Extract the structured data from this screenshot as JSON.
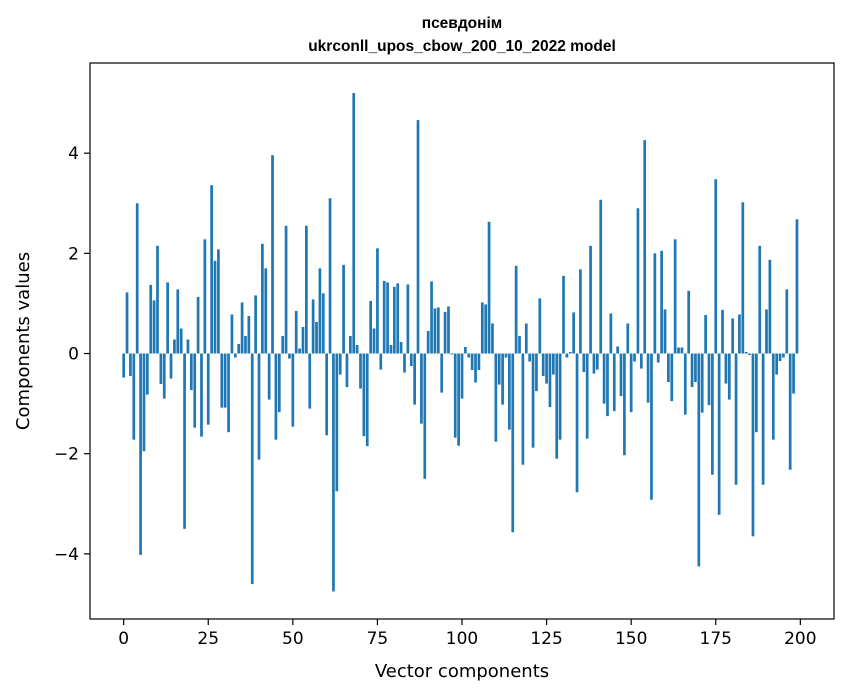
{
  "chart_data": {
    "type": "bar",
    "title": "псевдонім",
    "subtitle": "ukrconll_upos_cbow_200_10_2022 model",
    "xlabel": "Vector components",
    "ylabel": "Components values",
    "xlim": [
      -9.95,
      209.95
    ],
    "ylim": [
      -5.3,
      5.8
    ],
    "xticks": [
      0,
      25,
      50,
      75,
      100,
      125,
      150,
      175,
      200
    ],
    "yticks": [
      -4,
      -2,
      0,
      2,
      4
    ],
    "ytick_labels": [
      "−4",
      "−2",
      "0",
      "2",
      "4"
    ],
    "grid": false,
    "bar_color": "#1f77b4",
    "x": [
      0,
      1,
      2,
      3,
      4,
      5,
      6,
      7,
      8,
      9,
      10,
      11,
      12,
      13,
      14,
      15,
      16,
      17,
      18,
      19,
      20,
      21,
      22,
      23,
      24,
      25,
      26,
      27,
      28,
      29,
      30,
      31,
      32,
      33,
      34,
      35,
      36,
      37,
      38,
      39,
      40,
      41,
      42,
      43,
      44,
      45,
      46,
      47,
      48,
      49,
      50,
      51,
      52,
      53,
      54,
      55,
      56,
      57,
      58,
      59,
      60,
      61,
      62,
      63,
      64,
      65,
      66,
      67,
      68,
      69,
      70,
      71,
      72,
      73,
      74,
      75,
      76,
      77,
      78,
      79,
      80,
      81,
      82,
      83,
      84,
      85,
      86,
      87,
      88,
      89,
      90,
      91,
      92,
      93,
      94,
      95,
      96,
      97,
      98,
      99,
      100,
      101,
      102,
      103,
      104,
      105,
      106,
      107,
      108,
      109,
      110,
      111,
      112,
      113,
      114,
      115,
      116,
      117,
      118,
      119,
      120,
      121,
      122,
      123,
      124,
      125,
      126,
      127,
      128,
      129,
      130,
      131,
      132,
      133,
      134,
      135,
      136,
      137,
      138,
      139,
      140,
      141,
      142,
      143,
      144,
      145,
      146,
      147,
      148,
      149,
      150,
      151,
      152,
      153,
      154,
      155,
      156,
      157,
      158,
      159,
      160,
      161,
      162,
      163,
      164,
      165,
      166,
      167,
      168,
      169,
      170,
      171,
      172,
      173,
      174,
      175,
      176,
      177,
      178,
      179,
      180,
      181,
      182,
      183,
      184,
      185,
      186,
      187,
      188,
      189,
      190,
      191,
      192,
      193,
      194,
      195,
      196,
      197,
      198,
      199
    ],
    "values": [
      -0.48,
      1.22,
      -0.45,
      -1.72,
      3.0,
      -4.02,
      -1.95,
      -0.82,
      1.37,
      1.06,
      2.15,
      -0.61,
      -0.9,
      1.42,
      -0.5,
      0.28,
      1.28,
      0.5,
      -3.5,
      0.28,
      -0.73,
      -1.48,
      1.13,
      -1.66,
      2.28,
      -1.42,
      3.36,
      1.85,
      2.08,
      -1.08,
      -1.08,
      -1.57,
      0.78,
      -0.08,
      0.19,
      1.02,
      0.35,
      0.75,
      -4.6,
      1.16,
      -2.12,
      2.19,
      1.7,
      -0.92,
      3.96,
      -1.72,
      -1.17,
      0.35,
      2.55,
      -0.1,
      -1.46,
      0.85,
      0.1,
      0.53,
      2.55,
      -1.1,
      1.08,
      0.63,
      1.7,
      1.2,
      -1.63,
      3.1,
      -4.75,
      -2.75,
      -0.42,
      1.77,
      -0.67,
      0.35,
      5.2,
      0.17,
      -0.7,
      -1.65,
      -1.85,
      1.05,
      0.5,
      2.1,
      -0.32,
      1.45,
      1.42,
      0.17,
      1.33,
      1.4,
      0.23,
      -0.38,
      1.38,
      -0.25,
      -1.02,
      4.66,
      -1.4,
      -2.5,
      0.45,
      1.44,
      0.9,
      0.92,
      -0.78,
      0.83,
      0.94,
      -0.02,
      -1.68,
      -1.84,
      -0.9,
      0.13,
      -0.08,
      -0.33,
      -0.58,
      -0.33,
      1.02,
      0.98,
      2.63,
      0.6,
      -1.76,
      -0.62,
      -1.02,
      -0.08,
      -1.52,
      -3.57,
      1.75,
      0.35,
      -2.22,
      0.6,
      -0.16,
      -1.88,
      -0.75,
      1.1,
      -0.45,
      -0.6,
      -1.07,
      -0.42,
      -2.1,
      -1.72,
      1.55,
      -0.08,
      0.03,
      0.82,
      -2.77,
      1.68,
      -0.37,
      -1.7,
      2.15,
      -0.4,
      -0.32,
      3.07,
      -1.0,
      -1.25,
      0.8,
      -1.15,
      0.14,
      -0.85,
      -2.03,
      0.6,
      -1.17,
      -0.16,
      2.9,
      -0.3,
      4.26,
      -0.98,
      -2.92,
      2.0,
      -0.18,
      2.05,
      0.88,
      -0.57,
      -0.95,
      2.28,
      0.12,
      0.12,
      -1.22,
      1.25,
      -0.67,
      -0.57,
      -4.25,
      -1.18,
      0.77,
      -1.03,
      -2.42,
      3.48,
      -3.22,
      0.87,
      -0.6,
      -0.92,
      0.7,
      -2.62,
      0.78,
      3.02,
      0.03,
      -0.03,
      -3.65,
      -1.57,
      2.15,
      -2.62,
      0.88,
      1.87,
      -1.72,
      -0.42,
      -0.15,
      -0.08,
      1.28,
      -2.32,
      -0.8,
      2.68
    ]
  }
}
